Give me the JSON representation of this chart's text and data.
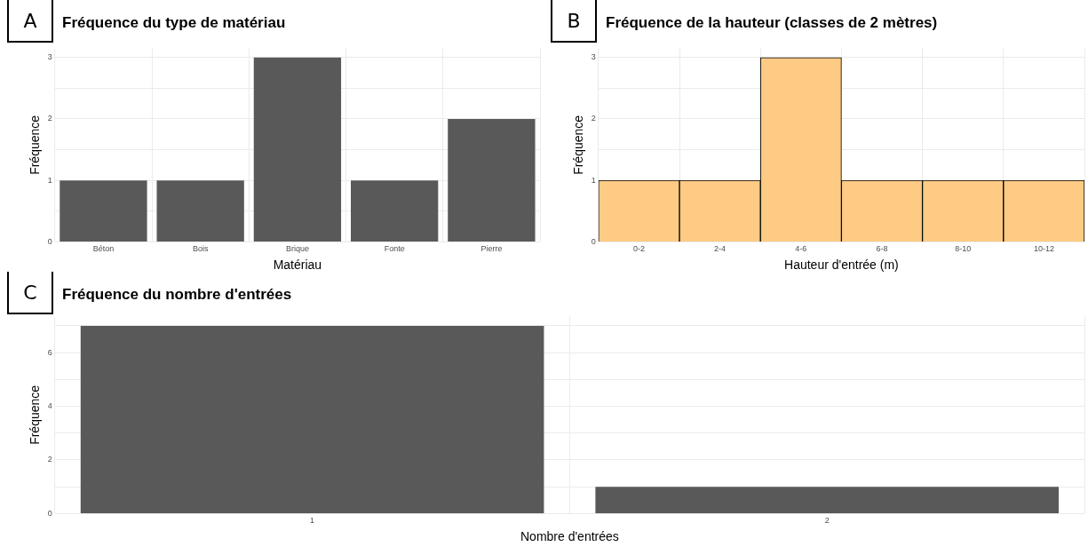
{
  "chart_data": [
    {
      "type": "bar",
      "title": "Fréquence du type de matériau",
      "xlabel": "Matériau",
      "ylabel": "Fréquence",
      "annotations": [
        "A"
      ],
      "categories": [
        "Béton",
        "Bois",
        "Brique",
        "Fonte",
        "Pierre"
      ],
      "values": [
        1,
        1,
        3,
        1,
        2
      ],
      "color": "#595959",
      "ylim": [
        0,
        3.15
      ],
      "yticks": [
        0,
        {
          "value": 0.5,
          "label": null
        },
        1,
        {
          "value": 1.5,
          "label": null
        },
        2,
        {
          "value": 2.5,
          "label": null
        },
        3
      ],
      "grid": true
    },
    {
      "type": "bar",
      "title": "Fréquence de la hauteur (classes de 2 mètres)",
      "xlabel": "Hauteur d'entrée (m)",
      "ylabel": "Fréquence",
      "annotations": [
        "B"
      ],
      "categories": [
        "0-2",
        "2-4",
        "4-6",
        "6-8",
        "8-10",
        "10-12"
      ],
      "values": [
        1,
        1,
        3,
        1,
        1,
        1
      ],
      "color": "#fecb84",
      "ylim": [
        0,
        3.15
      ],
      "yticks": [
        0,
        1,
        {
          "value": 1.5,
          "label": null
        },
        2,
        {
          "value": 2.5,
          "label": null
        },
        3
      ],
      "grid": true
    },
    {
      "type": "bar",
      "title": "Fréquence du nombre d'entrées",
      "xlabel": "Nombre d'entrées",
      "ylabel": "Fréquence",
      "annotations": [
        "C"
      ],
      "categories": [
        "1",
        "2"
      ],
      "values": [
        7,
        1
      ],
      "color": "#595959",
      "ylim": [
        0,
        7.35
      ],
      "yticks": [
        0,
        {
          "value": 1,
          "label": null
        },
        2,
        {
          "value": 3,
          "label": null
        },
        4,
        {
          "value": 5,
          "label": null
        },
        6,
        {
          "value": 7,
          "label": null
        }
      ],
      "grid": true
    }
  ]
}
